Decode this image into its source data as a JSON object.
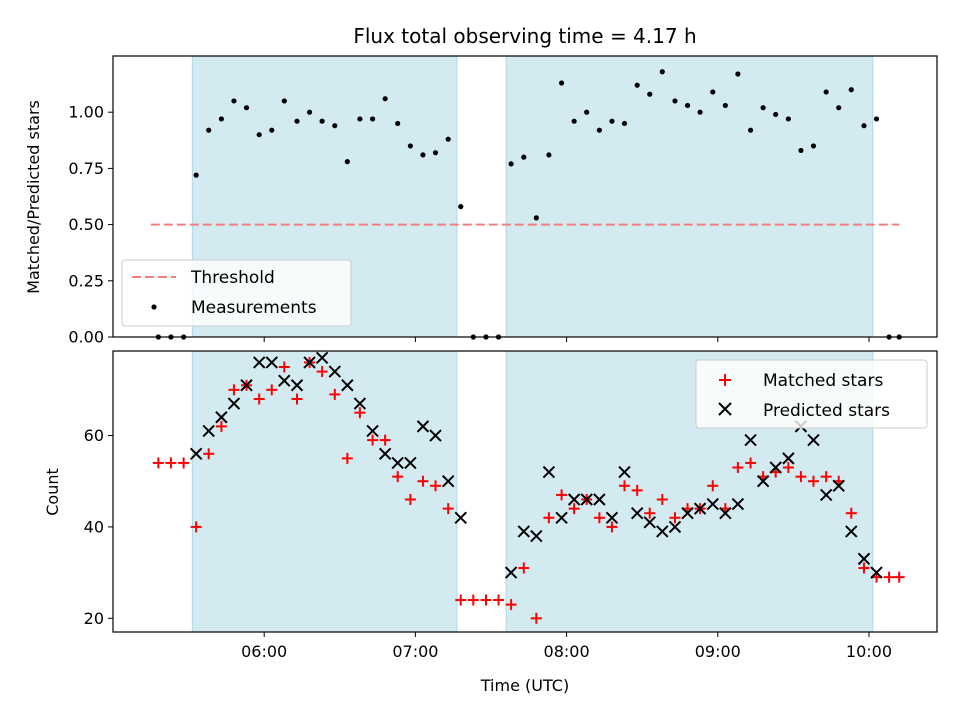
{
  "chart_data": {
    "title": "Flux total observing time = 4.17 h",
    "xlabel": "Time (UTC)",
    "x_ticks": [
      "06:00",
      "07:00",
      "08:00",
      "09:00",
      "10:00"
    ],
    "x_range_hours": [
      5.0,
      10.45
    ],
    "shaded_intervals": [
      [
        5.525,
        7.275
      ],
      [
        7.6,
        10.025
      ]
    ],
    "shade_color": "#d4eaf1",
    "panels": [
      {
        "type": "scatter",
        "ylabel": "Matched/Predicted stars",
        "ylim": [
          0,
          1.25
        ],
        "y_ticks": [
          "0.00",
          "0.25",
          "0.50",
          "0.75",
          "1.00"
        ],
        "legend_position": "lower-left",
        "threshold": {
          "name": "Threshold",
          "value": 0.5,
          "x_range": [
            5.25,
            10.2
          ],
          "color": "#f08080"
        },
        "series": [
          {
            "name": "Measurements",
            "marker": "dot",
            "color": "#000000",
            "x": [
              5.3,
              5.383,
              5.467,
              5.55,
              5.633,
              5.717,
              5.8,
              5.883,
              5.967,
              6.05,
              6.133,
              6.217,
              6.3,
              6.383,
              6.467,
              6.55,
              6.633,
              6.717,
              6.8,
              6.883,
              6.967,
              7.05,
              7.133,
              7.217,
              7.3,
              7.383,
              7.467,
              7.55,
              7.633,
              7.717,
              7.8,
              7.883,
              7.967,
              8.05,
              8.133,
              8.217,
              8.3,
              8.383,
              8.467,
              8.55,
              8.633,
              8.717,
              8.8,
              8.883,
              8.967,
              9.05,
              9.133,
              9.217,
              9.3,
              9.383,
              9.467,
              9.55,
              9.633,
              9.717,
              9.8,
              9.883,
              9.967,
              10.05,
              10.133,
              10.2
            ],
            "y": [
              0.0,
              0.0,
              0.0,
              0.72,
              0.92,
              0.97,
              1.05,
              1.02,
              0.9,
              0.92,
              1.05,
              0.96,
              1.0,
              0.96,
              0.94,
              0.78,
              0.97,
              0.97,
              1.06,
              0.95,
              0.85,
              0.81,
              0.82,
              0.88,
              0.58,
              0.0,
              0.0,
              0.0,
              0.77,
              0.8,
              0.53,
              0.81,
              1.13,
              0.96,
              1.0,
              0.92,
              0.96,
              0.95,
              1.12,
              1.08,
              1.18,
              1.05,
              1.03,
              1.0,
              1.09,
              1.03,
              1.17,
              0.92,
              1.02,
              0.99,
              0.97,
              0.83,
              0.85,
              1.09,
              1.02,
              1.1,
              0.94,
              0.97,
              0.0,
              0.0
            ]
          }
        ]
      },
      {
        "type": "scatter",
        "ylabel": "Count",
        "ylim": [
          17,
          78.5
        ],
        "y_ticks": [
          "20",
          "40",
          "60"
        ],
        "legend_position": "top-right",
        "series": [
          {
            "name": "Matched stars",
            "marker": "plus",
            "color": "#ff0000",
            "x": [
              5.3,
              5.383,
              5.467,
              5.55,
              5.633,
              5.717,
              5.8,
              5.883,
              5.967,
              6.05,
              6.133,
              6.217,
              6.3,
              6.383,
              6.467,
              6.55,
              6.633,
              6.717,
              6.8,
              6.883,
              6.967,
              7.05,
              7.133,
              7.217,
              7.3,
              7.383,
              7.467,
              7.55,
              7.633,
              7.717,
              7.8,
              7.883,
              7.967,
              8.05,
              8.133,
              8.217,
              8.3,
              8.383,
              8.467,
              8.55,
              8.633,
              8.717,
              8.8,
              8.883,
              8.967,
              9.05,
              9.133,
              9.217,
              9.3,
              9.383,
              9.467,
              9.55,
              9.633,
              9.717,
              9.8,
              9.883,
              9.967,
              10.05,
              10.133,
              10.2
            ],
            "y": [
              54,
              54,
              54,
              40,
              56,
              62,
              70,
              71,
              68,
              70,
              75,
              68,
              76,
              74,
              69,
              55,
              65,
              59,
              59,
              51,
              46,
              50,
              49,
              44,
              24,
              24,
              24,
              24,
              23,
              31,
              20,
              42,
              47,
              44,
              46,
              42,
              40,
              49,
              48,
              43,
              46,
              42,
              44,
              44,
              49,
              44,
              53,
              54,
              51,
              52,
              53,
              51,
              50,
              51,
              50,
              43,
              31,
              29,
              29,
              29
            ]
          },
          {
            "name": "Predicted stars",
            "marker": "x",
            "color": "#000000",
            "x": [
              5.55,
              5.633,
              5.717,
              5.8,
              5.883,
              5.967,
              6.05,
              6.133,
              6.217,
              6.3,
              6.383,
              6.467,
              6.55,
              6.633,
              6.717,
              6.8,
              6.883,
              6.967,
              7.05,
              7.133,
              7.217,
              7.3,
              7.633,
              7.717,
              7.8,
              7.883,
              7.967,
              8.05,
              8.133,
              8.217,
              8.3,
              8.383,
              8.467,
              8.55,
              8.633,
              8.717,
              8.8,
              8.883,
              8.967,
              9.05,
              9.133,
              9.217,
              9.3,
              9.383,
              9.467,
              9.55,
              9.633,
              9.717,
              9.8,
              9.883,
              9.967,
              10.05
            ],
            "y": [
              56,
              61,
              64,
              67,
              71,
              76,
              76,
              72,
              71,
              76,
              77,
              74,
              71,
              67,
              61,
              56,
              54,
              54,
              62,
              60,
              50,
              42,
              30,
              39,
              38,
              52,
              42,
              46,
              46,
              46,
              42,
              52,
              43,
              41,
              39,
              40,
              43,
              44,
              45,
              43,
              45,
              59,
              50,
              53,
              55,
              62,
              59,
              47,
              49,
              39,
              33,
              30
            ]
          }
        ]
      }
    ]
  }
}
